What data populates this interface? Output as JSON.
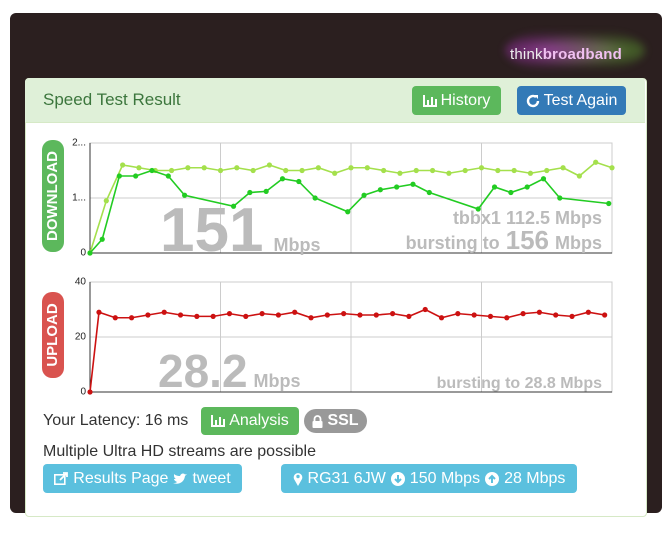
{
  "header": {
    "logo_think": "think",
    "logo_broadband": "broadband"
  },
  "panel": {
    "title": "Speed Test Result",
    "buttons": [
      "History",
      "Test Again"
    ]
  },
  "chart_data": [
    {
      "type": "line",
      "label": "DOWNLOAD",
      "xlim": [
        0,
        32
      ],
      "ylim": [
        0,
        2
      ],
      "yticks": [
        0,
        {
          "value": 1,
          "label": "1..."
        },
        {
          "value": 2,
          "label": "2..."
        }
      ],
      "grid": true,
      "series": [
        {
          "color": "#a4e04c",
          "x": [
            0,
            1,
            2,
            3,
            4,
            5,
            6,
            7,
            8,
            9,
            10,
            11,
            12,
            13,
            14,
            15,
            16,
            17,
            18,
            19,
            20,
            21,
            22,
            23,
            24,
            25,
            26,
            27,
            28,
            29,
            30,
            31,
            32
          ],
          "values": [
            0,
            0.95,
            1.6,
            1.55,
            1.5,
            1.5,
            1.55,
            1.55,
            1.5,
            1.55,
            1.5,
            1.6,
            1.5,
            1.5,
            1.55,
            1.45,
            1.55,
            1.55,
            1.5,
            1.45,
            1.5,
            1.5,
            1.45,
            1.5,
            1.55,
            1.5,
            1.5,
            1.45,
            1.5,
            1.55,
            1.4,
            1.65,
            1.55
          ]
        },
        {
          "color": "#22cc22",
          "x": [
            0,
            0.75,
            1.8,
            2.8,
            3.8,
            4.8,
            5.8,
            8.8,
            9.8,
            10.8,
            11.8,
            12.8,
            13.8,
            15.8,
            16.8,
            17.8,
            18.8,
            19.8,
            20.8,
            23.8,
            24.8,
            25.8,
            26.8,
            27.8,
            28.8,
            31.8
          ],
          "values": [
            0,
            0.25,
            1.4,
            1.4,
            1.5,
            1.4,
            1.05,
            0.85,
            1.1,
            1.12,
            1.35,
            1.3,
            1.0,
            0.75,
            1.05,
            1.15,
            1.2,
            1.25,
            1.1,
            0.8,
            1.2,
            1.1,
            1.2,
            1.35,
            1.0,
            0.9
          ]
        }
      ],
      "result": {
        "speed": 151,
        "unit": "Mbps",
        "note": "tbbx1 112.5 Mbps",
        "burst_prefix": "bursting to",
        "burst_speed": 156,
        "burst_unit": "Mbps"
      }
    },
    {
      "type": "line",
      "label": "UPLOAD",
      "xlim": [
        0,
        32
      ],
      "ylim": [
        0,
        40
      ],
      "yticks": [
        0,
        20,
        40
      ],
      "grid": true,
      "series": [
        {
          "color": "#cc1111",
          "x": [
            0,
            0.55,
            1.55,
            2.55,
            3.55,
            4.55,
            5.55,
            6.55,
            7.55,
            8.55,
            9.55,
            10.55,
            11.55,
            12.55,
            13.55,
            14.55,
            15.55,
            16.55,
            17.55,
            18.55,
            19.55,
            20.55,
            21.55,
            22.55,
            23.55,
            24.55,
            25.55,
            26.55,
            27.55,
            28.55,
            29.55,
            30.55,
            31.55
          ],
          "values": [
            0,
            29,
            27,
            27,
            28,
            29,
            28,
            27.5,
            27.5,
            28.5,
            27.5,
            28.5,
            28,
            29,
            27,
            28,
            28.5,
            28,
            28,
            28.5,
            27.5,
            30,
            27,
            28.5,
            28,
            27.5,
            27,
            28.5,
            29,
            28,
            27.5,
            29,
            28
          ]
        }
      ],
      "result": {
        "speed": 28.2,
        "unit": "Mbps",
        "burst": "bursting to 28.8 Mbps"
      }
    }
  ],
  "latency": {
    "label": "Your Latency: 16 ms",
    "buttons": [
      "Analysis",
      "SSL"
    ]
  },
  "message": "Multiple Ultra HD streams are possible",
  "links": [
    "Results Page",
    "tweet"
  ],
  "location": {
    "postcode": "RG31 6JW",
    "download": "150 Mbps",
    "upload": "28 Mbps"
  }
}
